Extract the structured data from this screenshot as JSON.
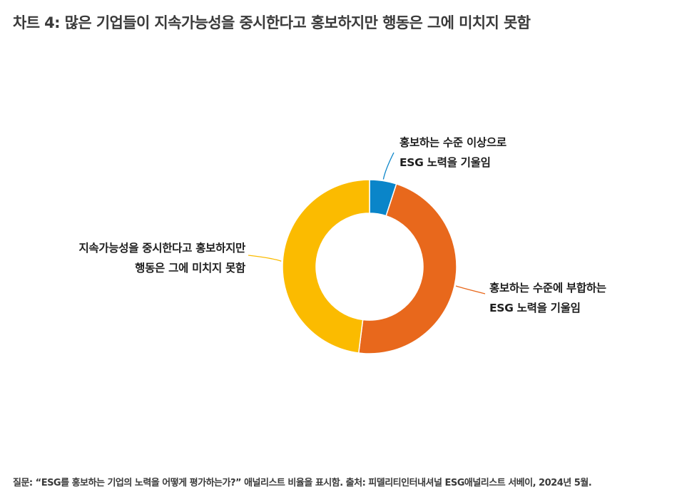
{
  "title": "차트 4: 많은 기업들이 지속가능성을 중시한다고 홍보하지만 행동은 그에 미치지 못함",
  "footnote": "질문: “ESG를 홍보하는 기업의 노력을 어떻게 평가하는가?” 애널리스트 비율을 표시함. 출처: 피델리티인터내셔널 ESG애널리스트 서베이, 2024년 5월.",
  "chart_data": {
    "type": "pie",
    "style": "donut",
    "slices": [
      {
        "label_lines": [
          "홍보하는 수준 이상으로",
          "ESG 노력을 기울임"
        ],
        "value": 5,
        "color": "#0a85c9"
      },
      {
        "label_lines": [
          "홍보하는 수준에 부합하는",
          "ESG 노력을 기울임"
        ],
        "value": 47,
        "color": "#e8681c"
      },
      {
        "label_lines": [
          "지속가능성을 중시한다고 홍보하지만",
          "행동은 그에 미치지 못함"
        ],
        "value": 48,
        "color": "#fbbb00"
      }
    ]
  }
}
